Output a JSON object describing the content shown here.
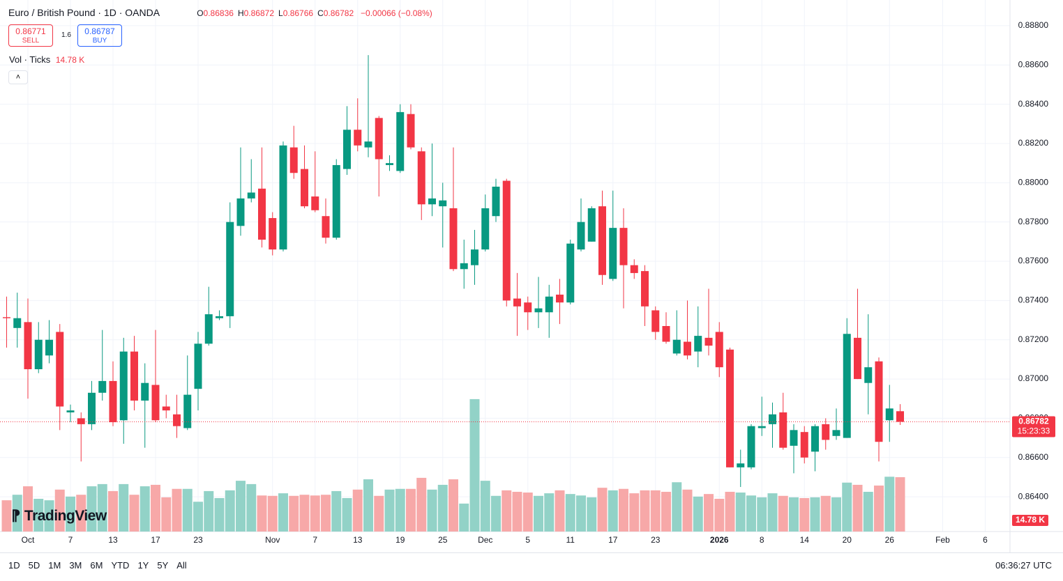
{
  "header": {
    "symbol": "Euro / British Pound · 1D · OANDA",
    "ohlc": [
      {
        "key": "O",
        "value": "0.86836"
      },
      {
        "key": "H",
        "value": "0.86872"
      },
      {
        "key": "L",
        "value": "0.86766"
      },
      {
        "key": "C",
        "value": "0.86782"
      }
    ],
    "change": "−0.00066 (−0.08%)",
    "sell_price": "0.86771",
    "sell": "SELL",
    "spread": "1.6",
    "buy_price": "0.86787",
    "buy": "BUY",
    "vol_title": "Vol · Ticks",
    "vol_value": "14.78 K",
    "logo": "TradingView"
  },
  "chart_data": {
    "type": "candlestick",
    "up_color": "#089981",
    "down_color": "#f23645",
    "volume_up_color": "#92d2c7",
    "volume_down_color": "#f7a8a8",
    "grid": true,
    "categories": [
      null,
      null,
      "Oct",
      null,
      null,
      null,
      "7",
      null,
      null,
      null,
      "13",
      null,
      null,
      null,
      "17",
      null,
      null,
      null,
      "23",
      null,
      null,
      null,
      null,
      null,
      null,
      "Nov",
      null,
      null,
      null,
      "7",
      null,
      null,
      null,
      "13",
      null,
      null,
      null,
      "19",
      null,
      null,
      null,
      "25",
      null,
      null,
      null,
      "Dec",
      null,
      null,
      null,
      "5",
      null,
      null,
      null,
      "11",
      null,
      null,
      null,
      "17",
      null,
      null,
      null,
      "23",
      null,
      null,
      null,
      null,
      null,
      "2026",
      null,
      null,
      null,
      "8",
      null,
      null,
      null,
      "14",
      null,
      null,
      null,
      "20",
      null,
      null,
      null,
      "26",
      null,
      null,
      null,
      null,
      "Feb",
      null,
      null,
      null,
      "6"
    ],
    "open": [
      0.87315,
      0.8726,
      0.8729,
      0.8705,
      0.8712,
      0.8724,
      0.8683,
      0.868,
      0.8677,
      0.8693,
      0.8699,
      0.8679,
      0.8714,
      0.8689,
      0.8697,
      0.8686,
      0.8682,
      0.8675,
      0.8695,
      0.8718,
      0.8731,
      0.8732,
      0.8778,
      0.8792,
      0.8797,
      0.8782,
      0.8766,
      0.8818,
      0.8807,
      0.8793,
      0.8783,
      0.8772,
      0.8807,
      0.8827,
      0.8818,
      0.8833,
      0.8809,
      0.8806,
      0.8835,
      0.8816,
      0.8789,
      0.8788,
      0.8787,
      0.8756,
      0.8758,
      0.8766,
      0.8783,
      0.8801,
      0.8741,
      0.8739,
      0.8734,
      0.8734,
      0.8743,
      0.8739,
      0.8766,
      0.877,
      0.8788,
      0.8751,
      0.8777,
      0.8758,
      0.8755,
      0.8735,
      0.8727,
      0.8713,
      0.8719,
      0.8714,
      0.8721,
      0.8724,
      0.8715,
      0.8655,
      0.8655,
      0.8675,
      0.8677,
      0.8683,
      0.8666,
      0.8673,
      0.8663,
      0.8677,
      0.8671,
      0.867,
      0.8721,
      0.8698,
      0.8709,
      0.8679,
      0.86836,
      null,
      null,
      null,
      null,
      null,
      null,
      null,
      null
    ],
    "high": [
      0.8742,
      0.8744,
      0.8741,
      0.8729,
      0.873,
      0.8728,
      0.8687,
      0.8683,
      0.8699,
      0.8725,
      0.8709,
      0.8721,
      0.8722,
      0.8708,
      0.8725,
      0.8692,
      0.8692,
      0.8712,
      0.8724,
      0.8747,
      0.8735,
      0.879,
      0.8818,
      0.8812,
      0.8818,
      0.8785,
      0.8821,
      0.8829,
      0.8819,
      0.8816,
      0.8792,
      0.8812,
      0.8839,
      0.8843,
      0.8865,
      0.8834,
      0.8814,
      0.884,
      0.884,
      0.8818,
      0.882,
      0.88,
      0.8818,
      0.8771,
      0.8776,
      0.8794,
      0.8802,
      0.8802,
      0.8754,
      0.8742,
      0.8752,
      0.8748,
      0.8751,
      0.8771,
      0.8792,
      0.8788,
      0.8796,
      0.8796,
      0.8787,
      0.8761,
      0.8758,
      0.8737,
      0.8734,
      0.8735,
      0.874,
      0.8737,
      0.8746,
      0.8729,
      0.8716,
      0.8664,
      0.8677,
      0.8691,
      0.8688,
      0.8693,
      0.8677,
      0.8676,
      0.8677,
      0.868,
      0.8685,
      0.8731,
      0.8746,
      0.8733,
      0.8711,
      0.8697,
      0.86872,
      null,
      null,
      null,
      null,
      null,
      null,
      null,
      null
    ],
    "low": [
      0.8716,
      0.8716,
      0.869,
      0.8703,
      0.8708,
      0.8674,
      0.8678,
      0.8658,
      0.8674,
      0.8689,
      0.8676,
      0.8667,
      0.8684,
      0.8665,
      0.8678,
      0.868,
      0.867,
      0.8674,
      0.8684,
      0.8717,
      0.873,
      0.8726,
      0.8773,
      0.879,
      0.8767,
      0.8763,
      0.8765,
      0.8802,
      0.8787,
      0.8785,
      0.8769,
      0.8771,
      0.8804,
      0.8816,
      0.8813,
      0.8793,
      0.8806,
      0.8805,
      0.8817,
      0.8781,
      0.8783,
      0.8767,
      0.8755,
      0.8746,
      0.8748,
      0.8765,
      0.878,
      0.8737,
      0.8722,
      0.8725,
      0.8726,
      0.8721,
      0.8728,
      0.8738,
      0.8765,
      0.877,
      0.8748,
      0.875,
      0.8736,
      0.8751,
      0.8727,
      0.872,
      0.8718,
      0.8712,
      0.871,
      0.8706,
      0.8712,
      0.8701,
      0.8655,
      0.8645,
      0.8654,
      0.8671,
      0.8665,
      0.8664,
      0.8652,
      0.8657,
      0.8653,
      0.8664,
      0.8669,
      0.867,
      0.87,
      0.8682,
      0.8658,
      0.8668,
      0.86766,
      null,
      null,
      null,
      null,
      null,
      null,
      null,
      null
    ],
    "close": [
      0.8731,
      0.8731,
      0.8705,
      0.872,
      0.872,
      0.8686,
      0.8684,
      0.8677,
      0.8693,
      0.8699,
      0.8678,
      0.8714,
      0.8689,
      0.8698,
      0.8679,
      0.8684,
      0.8676,
      0.8692,
      0.8718,
      0.8733,
      0.8732,
      0.878,
      0.8792,
      0.8795,
      0.8771,
      0.8766,
      0.8819,
      0.8805,
      0.8788,
      0.8786,
      0.8772,
      0.8809,
      0.8827,
      0.8819,
      0.8821,
      0.8812,
      0.881,
      0.8836,
      0.8818,
      0.8789,
      0.8792,
      0.8791,
      0.8756,
      0.8759,
      0.8766,
      0.8787,
      0.8798,
      0.874,
      0.8737,
      0.8734,
      0.8736,
      0.8742,
      0.8739,
      0.8769,
      0.878,
      0.8787,
      0.8753,
      0.8777,
      0.8758,
      0.8754,
      0.8737,
      0.8724,
      0.8719,
      0.872,
      0.8712,
      0.8722,
      0.8717,
      0.8706,
      0.8655,
      0.8657,
      0.8676,
      0.8676,
      0.8682,
      0.8665,
      0.8674,
      0.866,
      0.8676,
      0.8669,
      0.8674,
      0.8723,
      0.87,
      0.8706,
      0.8668,
      0.8685,
      0.86782,
      null,
      null,
      null,
      null,
      null,
      null,
      null,
      null
    ],
    "volume": [
      8.5,
      10.0,
      12.3,
      8.9,
      8.5,
      11.4,
      9.5,
      10.0,
      12.3,
      12.9,
      11.0,
      12.9,
      10.0,
      12.3,
      12.7,
      9.3,
      11.6,
      11.6,
      8.1,
      11.0,
      9.1,
      11.2,
      13.8,
      12.9,
      9.8,
      9.7,
      10.4,
      9.7,
      10.0,
      9.8,
      10.0,
      11.0,
      9.1,
      11.4,
      14.2,
      9.7,
      11.4,
      11.6,
      11.6,
      14.6,
      11.4,
      12.7,
      14.2,
      7.6,
      36.0,
      13.8,
      9.7,
      11.2,
      10.8,
      10.6,
      9.7,
      10.4,
      11.2,
      10.2,
      9.8,
      9.3,
      11.9,
      11.2,
      11.6,
      10.4,
      11.2,
      11.2,
      10.8,
      13.4,
      11.4,
      9.5,
      10.2,
      8.9,
      10.8,
      10.6,
      9.8,
      9.3,
      10.4,
      9.7,
      9.3,
      9.1,
      9.3,
      9.7,
      9.3,
      13.3,
      12.7,
      10.8,
      12.5,
      14.9,
      14.78,
      null,
      null,
      null,
      null,
      null,
      null,
      null,
      null
    ],
    "ylim": [
      0.86223,
      0.88931
    ],
    "yticks": [
      {
        "value": 0.864,
        "label": "0.86400"
      },
      {
        "value": 0.866,
        "label": "0.86600"
      },
      {
        "value": 0.868,
        "label": "0.86800"
      },
      {
        "value": 0.87,
        "label": "0.87000"
      },
      {
        "value": 0.872,
        "label": "0.87200"
      },
      {
        "value": 0.874,
        "label": "0.87400"
      },
      {
        "value": 0.876,
        "label": "0.87600"
      },
      {
        "value": 0.878,
        "label": "0.87800"
      },
      {
        "value": 0.88,
        "label": "0.88000"
      },
      {
        "value": 0.882,
        "label": "0.88200"
      },
      {
        "value": 0.884,
        "label": "0.88400"
      },
      {
        "value": 0.886,
        "label": "0.88600"
      },
      {
        "value": 0.888,
        "label": "0.88800"
      }
    ],
    "volume_ylim": [
      0,
      144.5
    ],
    "last_price": {
      "value": 0.86782,
      "label": "0.86782",
      "countdown": "15:23:33"
    },
    "volume_label": "14.78 K"
  },
  "toolbar": {
    "ranges": [
      "1D",
      "5D",
      "1M",
      "3M",
      "6M",
      "YTD",
      "1Y",
      "5Y",
      "All"
    ],
    "clock": "06:36:27 UTC"
  }
}
